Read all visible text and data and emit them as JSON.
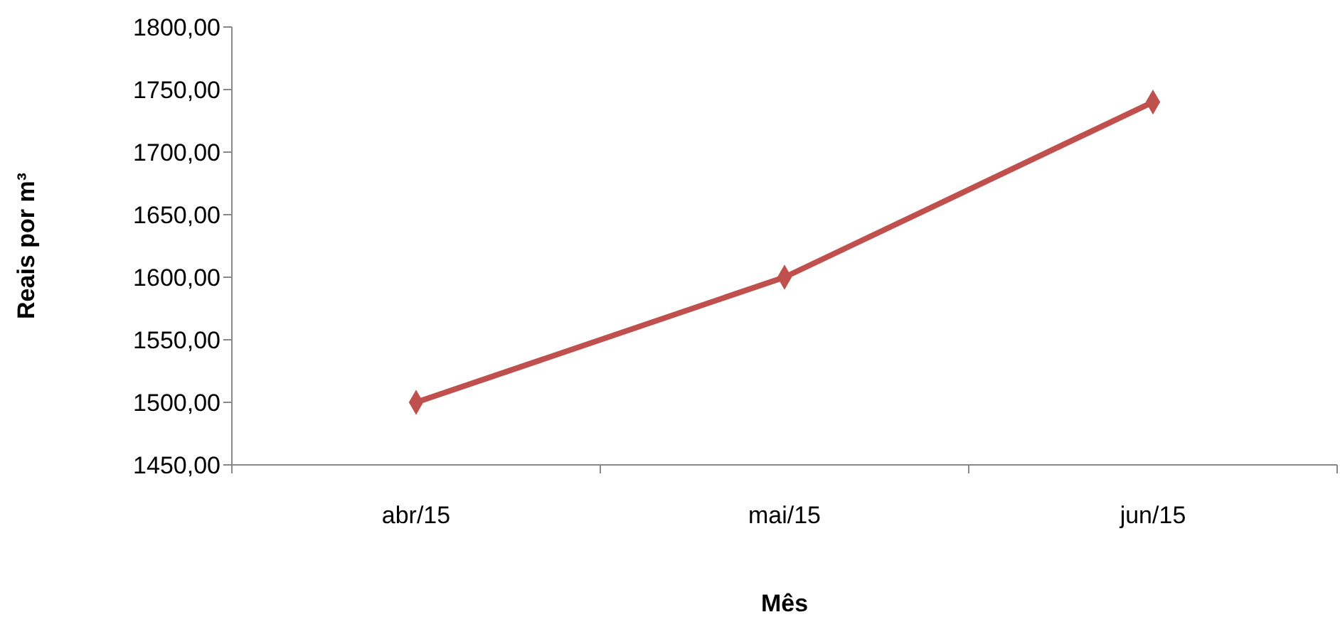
{
  "chart_data": {
    "type": "line",
    "xlabel": "Mês",
    "ylabel": "Reais por m³",
    "categories": [
      "abr/15",
      "mai/15",
      "jun/15"
    ],
    "series": [
      {
        "color": "#c0504d",
        "values": [
          1500,
          1600,
          1740
        ]
      }
    ],
    "ylim": [
      1450,
      1800
    ],
    "yticks": [
      {
        "value": 1450,
        "label": "1450,00"
      },
      {
        "value": 1500,
        "label": "1500,00"
      },
      {
        "value": 1550,
        "label": "1550,00"
      },
      {
        "value": 1600,
        "label": "1600,00"
      },
      {
        "value": 1650,
        "label": "1650,00"
      },
      {
        "value": 1700,
        "label": "1700,00"
      },
      {
        "value": 1750,
        "label": "1750,00"
      },
      {
        "value": 1800,
        "label": "1800,00"
      }
    ],
    "grid": false,
    "marker": "diamond",
    "line_style": "solid"
  }
}
